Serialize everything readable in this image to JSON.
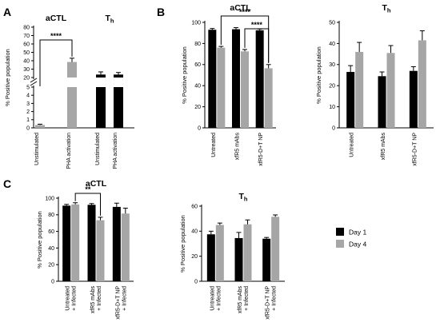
{
  "panel_labels": {
    "a": "A",
    "b": "B",
    "c": "C"
  },
  "ylabel": "% Positive population",
  "colors": {
    "day1": "#000000",
    "day4": "#a6a6a6"
  },
  "legend": {
    "day1": "Day 1",
    "day4": "Day 4"
  },
  "chart_data": [
    {
      "id": "A",
      "type": "bar",
      "scale": "broken",
      "y_ticks_low": [
        "0",
        "1",
        "2",
        "3",
        "4",
        "5"
      ],
      "y_ticks_high": [
        "20",
        "30",
        "40",
        "50",
        "60",
        "70",
        "80"
      ],
      "groups": [
        {
          "title": "aCTL",
          "categories": [
            "Unstimulated",
            "PHA activation"
          ],
          "values": [
            0.35,
            38.5
          ],
          "errors": [
            0.1,
            4.5
          ],
          "colors": [
            "#a6a6a6",
            "#a6a6a6"
          ],
          "significance": [
            {
              "from": 0,
              "to": 1,
              "label": "****"
            }
          ]
        },
        {
          "title": "Th",
          "categories": [
            "Unstimulated",
            "PHA activation"
          ],
          "values": [
            23.5,
            23.5
          ],
          "errors": [
            3.2,
            2.5
          ],
          "colors": [
            "#000000",
            "#000000"
          ],
          "significance": []
        }
      ]
    },
    {
      "id": "B1",
      "type": "bar",
      "title": "aCTL",
      "categories": [
        "Untreated",
        "xfR5 mAbs",
        "xfR5-D+T NP"
      ],
      "ylim": [
        0,
        100
      ],
      "yticks": [
        0,
        20,
        40,
        60,
        80,
        100
      ],
      "series": [
        {
          "key": "day1",
          "values": [
            93,
            93.5,
            92.5
          ],
          "errors": [
            1.2,
            1.5,
            1.2
          ]
        },
        {
          "key": "day4",
          "values": [
            76,
            72.5,
            56.5
          ],
          "errors": [
            1.2,
            1.8,
            3.5
          ]
        }
      ],
      "significance": [
        {
          "from": [
            0,
            1
          ],
          "to": [
            2,
            1
          ],
          "label": "****"
        },
        {
          "from": [
            1,
            1
          ],
          "to": [
            2,
            1
          ],
          "label": "****"
        }
      ]
    },
    {
      "id": "B2",
      "type": "bar",
      "title": "Th",
      "categories": [
        "Untreated",
        "xfR5 mAbs",
        "xfR5-D+T NP"
      ],
      "ylim": [
        0,
        50
      ],
      "yticks": [
        0,
        10,
        20,
        30,
        40,
        50
      ],
      "series": [
        {
          "key": "day1",
          "values": [
            26.5,
            24.5,
            27
          ],
          "errors": [
            3,
            2,
            2
          ]
        },
        {
          "key": "day4",
          "values": [
            36,
            35.5,
            41.5
          ],
          "errors": [
            4.5,
            3.5,
            4.5
          ]
        }
      ],
      "significance": []
    },
    {
      "id": "C1",
      "type": "bar",
      "title": "aCTL",
      "categories": [
        "Untreated\n+ Infected",
        "xfR5 mAbs\n+ Infected",
        "xfR5-D+T NP\n+ Infected"
      ],
      "ylim": [
        0,
        100
      ],
      "yticks": [
        0,
        20,
        40,
        60,
        80,
        100
      ],
      "series": [
        {
          "key": "day1",
          "values": [
            91,
            92,
            89.5
          ],
          "errors": [
            1.5,
            1.5,
            4.5
          ]
        },
        {
          "key": "day4",
          "values": [
            92.5,
            73.5,
            81.5
          ],
          "errors": [
            2,
            3.5,
            6.5
          ]
        }
      ],
      "significance": [
        {
          "from": [
            0,
            1
          ],
          "to": [
            1,
            1
          ],
          "label": "**"
        }
      ]
    },
    {
      "id": "C2",
      "type": "bar",
      "title": "Th",
      "categories": [
        "Untreated\n+ Infected",
        "xfR5 mAbs\n+ Infected",
        "xfR5-D+T NP\n+ Infected"
      ],
      "ylim": [
        0,
        60
      ],
      "yticks": [
        0,
        20,
        40,
        60
      ],
      "series": [
        {
          "key": "day1",
          "values": [
            37.5,
            34.5,
            34
          ],
          "errors": [
            2.5,
            4.5,
            1
          ]
        },
        {
          "key": "day4",
          "values": [
            45,
            45.5,
            51.5
          ],
          "errors": [
            1.5,
            3.5,
            1.5
          ]
        }
      ],
      "significance": []
    }
  ]
}
